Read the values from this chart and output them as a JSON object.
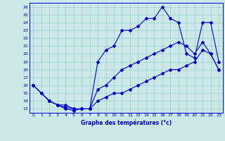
{
  "title": "Graphe des températures (°c)",
  "bg_color": "#cce8e8",
  "line_color": "#0000cc",
  "grid_color": "#99cccc",
  "xlim": [
    -0.5,
    23.5
  ],
  "ylim": [
    12.5,
    26.5
  ],
  "x_ticks": [
    0,
    1,
    2,
    3,
    4,
    5,
    6,
    7,
    8,
    9,
    10,
    11,
    12,
    13,
    14,
    15,
    16,
    17,
    18,
    19,
    20,
    21,
    22,
    23
  ],
  "y_ticks": [
    13,
    14,
    15,
    16,
    17,
    18,
    19,
    20,
    21,
    22,
    23,
    24,
    25,
    26
  ],
  "series_max": {
    "x": [
      0,
      1,
      2,
      3,
      4,
      5,
      6,
      7,
      8,
      9,
      10,
      11,
      12,
      13,
      14,
      15,
      16,
      17,
      18,
      19,
      20,
      21,
      22,
      23
    ],
    "y": [
      16,
      15,
      14,
      13.5,
      13.5,
      13,
      13,
      13,
      19,
      20.5,
      21,
      23,
      23,
      23.5,
      24.5,
      24.5,
      26,
      24.5,
      24,
      20,
      19.5,
      24,
      24,
      19
    ]
  },
  "series_min": {
    "x": [
      0,
      1,
      2,
      3,
      4,
      5,
      6,
      7,
      8,
      9,
      10,
      11,
      12,
      13,
      14,
      15,
      16,
      17,
      18,
      19,
      20,
      21,
      22,
      23
    ],
    "y": [
      16,
      15,
      14,
      13.5,
      13,
      12.8,
      13,
      13,
      14,
      14.5,
      15,
      15,
      15.5,
      16,
      16.5,
      17,
      17.5,
      18,
      18,
      18.5,
      19,
      20.5,
      20,
      18
    ]
  },
  "series_avg": {
    "x": [
      0,
      1,
      2,
      3,
      4,
      5,
      6,
      7,
      8,
      9,
      10,
      11,
      12,
      13,
      14,
      15,
      16,
      17,
      18,
      19,
      20,
      21,
      22,
      23
    ],
    "y": [
      16,
      15,
      14,
      13.5,
      13.2,
      13,
      13,
      13,
      15.5,
      16,
      17,
      18,
      18.5,
      19,
      19.5,
      20,
      20.5,
      21,
      21.5,
      21,
      20,
      21.5,
      20,
      18
    ]
  }
}
